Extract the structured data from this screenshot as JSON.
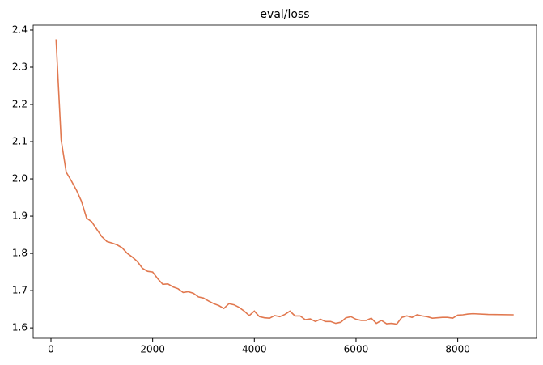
{
  "chart_data": {
    "type": "line",
    "title": "eval/loss",
    "x": [
      100,
      200,
      300,
      400,
      500,
      600,
      700,
      800,
      900,
      1000,
      1100,
      1200,
      1300,
      1400,
      1500,
      1600,
      1700,
      1800,
      1900,
      2000,
      2100,
      2200,
      2300,
      2400,
      2500,
      2600,
      2700,
      2800,
      2900,
      3000,
      3100,
      3200,
      3300,
      3400,
      3500,
      3600,
      3700,
      3800,
      3900,
      4000,
      4100,
      4200,
      4300,
      4400,
      4500,
      4600,
      4700,
      4800,
      4900,
      5000,
      5100,
      5200,
      5300,
      5400,
      5500,
      5600,
      5700,
      5800,
      5900,
      6000,
      6100,
      6200,
      6300,
      6400,
      6500,
      6600,
      6700,
      6800,
      6900,
      7000,
      7100,
      7200,
      7300,
      7400,
      7500,
      7600,
      7700,
      7800,
      7900,
      8000,
      8100,
      8200,
      8300,
      8600,
      9100
    ],
    "series": [
      {
        "name": "eval/loss",
        "color": "#e1784f",
        "values": [
          2.375,
          2.105,
          2.018,
          1.995,
          1.97,
          1.94,
          1.895,
          1.885,
          1.865,
          1.845,
          1.832,
          1.828,
          1.823,
          1.815,
          1.8,
          1.79,
          1.778,
          1.76,
          1.752,
          1.75,
          1.732,
          1.717,
          1.718,
          1.71,
          1.705,
          1.695,
          1.697,
          1.693,
          1.683,
          1.68,
          1.672,
          1.665,
          1.66,
          1.652,
          1.665,
          1.662,
          1.655,
          1.645,
          1.633,
          1.645,
          1.63,
          1.627,
          1.626,
          1.633,
          1.63,
          1.636,
          1.645,
          1.632,
          1.632,
          1.622,
          1.624,
          1.617,
          1.623,
          1.617,
          1.617,
          1.612,
          1.615,
          1.627,
          1.63,
          1.623,
          1.62,
          1.62,
          1.626,
          1.612,
          1.62,
          1.611,
          1.612,
          1.61,
          1.628,
          1.632,
          1.628,
          1.635,
          1.632,
          1.63,
          1.626,
          1.627,
          1.628,
          1.628,
          1.626,
          1.634,
          1.635,
          1.637,
          1.638,
          1.636,
          1.635
        ]
      }
    ],
    "xlim": [
      -350,
      9550
    ],
    "xticks": [
      0,
      2000,
      4000,
      6000,
      8000
    ],
    "ylim": [
      1.572,
      2.413
    ],
    "yticks": [
      1.6,
      1.7,
      1.8,
      1.9,
      {
        "value": 2,
        "label": "2.0"
      },
      2.1,
      2.2,
      2.3,
      2.4
    ]
  }
}
